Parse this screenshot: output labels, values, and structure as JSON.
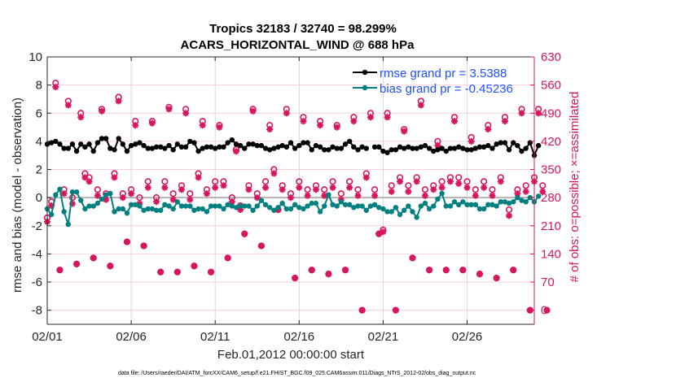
{
  "chart_data": {
    "type": "line",
    "title": [
      "Tropics 32183 / 32740 = 98.299%",
      "ACARS_HORIZONTAL_WIND @ 688 hPa"
    ],
    "xlabel": "Feb.01,2012 00:00:00 start",
    "ylabel_left": "rmse and bias (model - observation)",
    "ylabel_right": "# of obs: o=possible; ×=assimilated",
    "footnote": "data file: /Users/raeder/DAI/ATM_forcXX/CAM6_setup/f.e21.FHIST_BGC.f09_025.CAM6assim.011/Diags_NTrS_2012-02/obs_diag_output.nc",
    "xlim_days": [
      1,
      30
    ],
    "ylim_left": [
      -9,
      10
    ],
    "ylim_right": [
      -35,
      630
    ],
    "x_ticks": [
      {
        "day": 1,
        "label": "02/01"
      },
      {
        "day": 6,
        "label": "02/06"
      },
      {
        "day": 11,
        "label": "02/11"
      },
      {
        "day": 16,
        "label": "02/16"
      },
      {
        "day": 21,
        "label": "02/21"
      },
      {
        "day": 26,
        "label": "02/26"
      }
    ],
    "y_ticks_left": [
      10,
      8,
      6,
      4,
      2,
      0,
      -2,
      -4,
      -6,
      -8
    ],
    "y_ticks_right": [
      630,
      560,
      490,
      420,
      350,
      280,
      210,
      140,
      70,
      0
    ],
    "grid": "horizontal pink at right-axis ticks, vertical gray at x ticks",
    "legend": {
      "placement": "top-right",
      "entries": [
        {
          "label": "rmse grand pr = 3.5388",
          "color": "#000000"
        },
        {
          "label": "bias grand pr = -0.45236",
          "color": "#008080"
        }
      ]
    },
    "zero_line": 0,
    "colors": {
      "rmse": "#000000",
      "bias": "#008080",
      "obs": "#d6165b",
      "zero": "#b3b3b3",
      "hgrid": "#f5cfdc",
      "vgrid": "#d9d9d9"
    },
    "time_step_days": 0.25,
    "t_start_day": 1.0,
    "series": [
      {
        "name": "rmse",
        "values": [
          3.8,
          3.9,
          4.0,
          3.8,
          3.5,
          3.5,
          3.8,
          3.3,
          3.8,
          3.6,
          3.8,
          3.3,
          3.9,
          4.2,
          4.2,
          3.5,
          3.4,
          4.2,
          3.8,
          3.3,
          3.7,
          3.8,
          3.9,
          3.7,
          3.5,
          3.5,
          3.6,
          3.6,
          3.5,
          3.7,
          3.4,
          3.8,
          3.6,
          3.6,
          4.0,
          3.9,
          3.3,
          3.5,
          3.6,
          3.6,
          3.5,
          3.6,
          3.6,
          3.9,
          4.1,
          3.8,
          3.7,
          3.5,
          3.8,
          3.8,
          3.7,
          3.7,
          3.5,
          3.4,
          3.5,
          3.6,
          3.7,
          3.6,
          3.9,
          3.5,
          3.7,
          3.9,
          3.9,
          3.4,
          3.7,
          3.6,
          3.4,
          3.4,
          3.6,
          3.5,
          3.5,
          3.8,
          4.0,
          3.6,
          3.4,
          3.6,
          3.5,
          null,
          3.6,
          3.6,
          3.3,
          3.2,
          3.4,
          3.4,
          3.6,
          3.5,
          3.6,
          3.5,
          3.5,
          3.6,
          3.7,
          3.5,
          3.3,
          3.4,
          3.5,
          3.3,
          3.5,
          3.5,
          3.6,
          3.5,
          3.4,
          3.4,
          3.5,
          3.6,
          3.6,
          3.7,
          3.5,
          3.8,
          3.9,
          3.9,
          3.4,
          3.9,
          3.7,
          3.3,
          3.5,
          3.9,
          3.0,
          3.7
        ]
      },
      {
        "name": "bias",
        "values": [
          -0.8,
          -1.2,
          0.2,
          0.6,
          -1.0,
          -1.9,
          0.4,
          0.4,
          -0.2,
          -0.8,
          -0.6,
          -0.6,
          -0.4,
          -0.1,
          0.2,
          0.3,
          -1.0,
          -0.8,
          -0.8,
          -1.1,
          -0.5,
          -0.5,
          -0.6,
          -0.9,
          -0.8,
          -0.8,
          -0.9,
          -0.9,
          -0.5,
          -0.6,
          -0.8,
          -0.3,
          -0.6,
          -0.6,
          -0.6,
          -0.9,
          -0.8,
          -0.8,
          -1.0,
          -0.6,
          -0.6,
          -0.6,
          -0.8,
          -0.5,
          -0.6,
          -0.7,
          -0.6,
          -0.6,
          -0.6,
          -0.9,
          -0.6,
          -0.2,
          -0.5,
          -0.7,
          -0.9,
          -0.7,
          -0.4,
          -0.8,
          -0.8,
          -0.5,
          -0.7,
          -0.8,
          -0.6,
          -0.4,
          -0.4,
          -1.0,
          -0.6,
          0.2,
          -0.5,
          -0.6,
          -0.3,
          -0.5,
          -0.5,
          -0.7,
          -0.6,
          -0.6,
          -0.9,
          -0.6,
          -0.5,
          -0.7,
          -0.8,
          -1.0,
          -1.0,
          -0.7,
          -1.2,
          -0.9,
          -0.6,
          -1.0,
          -1.4,
          -0.6,
          -0.4,
          -0.8,
          -0.6,
          -0.1,
          0.3,
          -0.6,
          -0.6,
          -0.3,
          -0.5,
          -0.3,
          -0.5,
          -0.5,
          -0.5,
          -0.8,
          -0.8,
          -0.5,
          -0.5,
          -0.6,
          -0.3,
          -0.3,
          -0.4,
          -0.3,
          0.0,
          -0.2,
          -0.3,
          0.0,
          -0.3,
          0.1
        ]
      },
      {
        "name": "obs_possible",
        "values": [
          230,
          270,
          565,
          100,
          300,
          520,
          280,
          115,
          490,
          340,
          330,
          130,
          300,
          500,
          290,
          110,
          340,
          530,
          290,
          170,
          300,
          470,
          280,
          160,
          320,
          470,
          280,
          95,
          320,
          505,
          290,
          95,
          310,
          500,
          290,
          110,
          340,
          470,
          300,
          95,
          320,
          460,
          320,
          130,
          280,
          400,
          260,
          190,
          310,
          500,
          290,
          160,
          320,
          460,
          350,
          250,
          310,
          500,
          290,
          80,
          320,
          480,
          300,
          100,
          310,
          470,
          300,
          90,
          320,
          460,
          290,
          100,
          320,
          480,
          300,
          0,
          340,
          490,
          300,
          190,
          200,
          490,
          310,
          0,
          330,
          450,
          310,
          130,
          330,
          520,
          300,
          100,
          310,
          420,
          320,
          100,
          330,
          480,
          330,
          100,
          320,
          430,
          300,
          90,
          320,
          460,
          300,
          80,
          330,
          480,
          250,
          100,
          300,
          500,
          310,
          0,
          330,
          500,
          310,
          0
        ]
      },
      {
        "name": "obs_assimilated",
        "values": [
          220,
          260,
          555,
          100,
          290,
          510,
          265,
          115,
          480,
          330,
          320,
          130,
          285,
          495,
          275,
          110,
          330,
          520,
          280,
          170,
          290,
          460,
          265,
          160,
          305,
          465,
          270,
          95,
          305,
          500,
          275,
          95,
          300,
          490,
          275,
          110,
          330,
          460,
          290,
          95,
          305,
          455,
          310,
          130,
          270,
          395,
          250,
          190,
          300,
          495,
          280,
          160,
          305,
          450,
          340,
          250,
          300,
          490,
          280,
          80,
          305,
          470,
          285,
          100,
          300,
          460,
          285,
          90,
          305,
          455,
          275,
          100,
          305,
          470,
          285,
          0,
          330,
          480,
          285,
          190,
          195,
          480,
          295,
          0,
          320,
          445,
          295,
          130,
          320,
          510,
          285,
          100,
          300,
          410,
          305,
          100,
          320,
          470,
          315,
          100,
          305,
          420,
          285,
          90,
          305,
          450,
          285,
          80,
          320,
          470,
          235,
          100,
          290,
          490,
          295,
          0,
          320,
          490,
          295,
          0
        ]
      }
    ]
  }
}
